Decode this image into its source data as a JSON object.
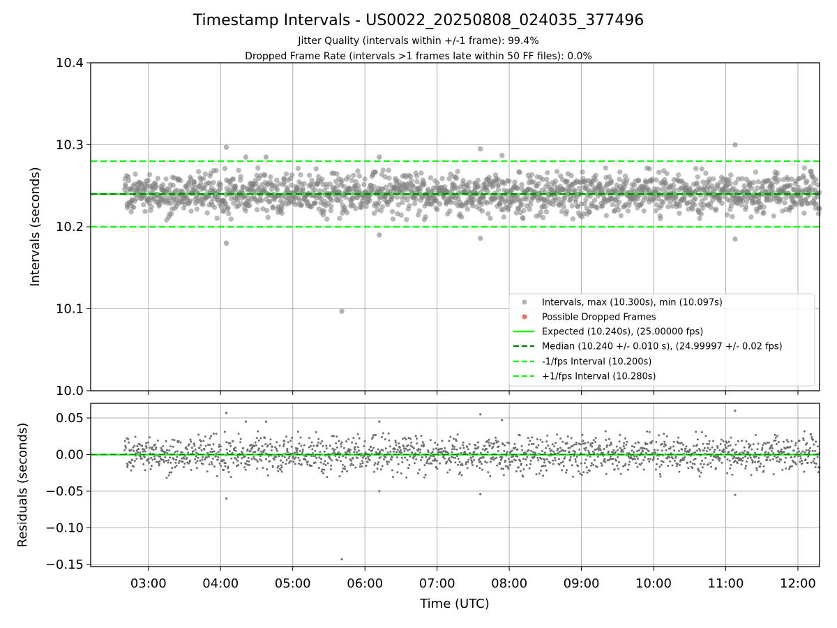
{
  "title": "Timestamp Intervals - US0022_20250808_024035_377496",
  "subtitle_lines": [
    "Jitter Quality (intervals within +/-1 frame): 99.4%",
    "Dropped Frame Rate (intervals >1 frames late within 50 FF files): 0.0%"
  ],
  "colors": {
    "points": "#808080",
    "dropped": "#f0604e",
    "expected": "#22ee22",
    "median": "#0a7d0a",
    "interval_lines": "#22ee22",
    "grid": "#b0b0b0"
  },
  "chart_data": [
    {
      "type": "scatter",
      "panel": "intervals",
      "ylabel": "Intervals (seconds)",
      "ylim": [
        10.0,
        10.4
      ],
      "yticks": [
        10.0,
        10.1,
        10.2,
        10.3,
        10.4
      ],
      "ytick_labels": [
        "10.0",
        "10.1",
        "10.2",
        "10.3",
        "10.4"
      ],
      "xlim_hours": [
        2.2,
        12.3
      ],
      "grid": true,
      "legend_placement": "lower-right",
      "legend": [
        {
          "label": "Intervals, max (10.300s), min (10.097s)",
          "style": "marker-gray"
        },
        {
          "label": "Possible Dropped Frames",
          "style": "marker-red"
        },
        {
          "label": "Expected (10.240s), (25.00000 fps)",
          "style": "line-green"
        },
        {
          "label": "Median (10.240 +/- 0.010 s), (24.99997 +/- 0.02 fps)",
          "style": "dash-darkgreen"
        },
        {
          "label": "-1/fps Interval (10.200s)",
          "style": "dash-green"
        },
        {
          "label": "+1/fps Interval (10.280s)",
          "style": "dash-green"
        }
      ],
      "reference_lines": {
        "expected": 10.24,
        "median": 10.24,
        "lower": 10.2,
        "upper": 10.28
      },
      "distribution": {
        "center": 10.24,
        "std": 0.013,
        "start_hour": 2.67,
        "end_hour": 12.3,
        "interval_seconds": 10.24
      },
      "notable_points": [
        {
          "x": 4.08,
          "y": 10.297
        },
        {
          "x": 4.08,
          "y": 10.18
        },
        {
          "x": 4.35,
          "y": 10.285
        },
        {
          "x": 4.63,
          "y": 10.285
        },
        {
          "x": 5.68,
          "y": 10.097
        },
        {
          "x": 6.2,
          "y": 10.285
        },
        {
          "x": 6.2,
          "y": 10.19
        },
        {
          "x": 7.6,
          "y": 10.295
        },
        {
          "x": 7.6,
          "y": 10.186
        },
        {
          "x": 7.9,
          "y": 10.287
        },
        {
          "x": 11.13,
          "y": 10.3
        },
        {
          "x": 11.13,
          "y": 10.185
        }
      ]
    },
    {
      "type": "scatter",
      "panel": "residuals",
      "ylabel": "Residuals (seconds)",
      "xlabel": "Time (UTC)",
      "ylim": [
        -0.153,
        0.07
      ],
      "yticks": [
        0.05,
        0.0,
        -0.05,
        -0.1,
        -0.15
      ],
      "ytick_labels": [
        "0.05",
        "0.00",
        "−0.05",
        "−0.10",
        "−0.15"
      ],
      "xticks_hours": [
        3,
        4,
        5,
        6,
        7,
        8,
        9,
        10,
        11,
        12
      ],
      "xtick_labels": [
        "03:00",
        "04:00",
        "05:00",
        "06:00",
        "07:00",
        "08:00",
        "09:00",
        "10:00",
        "11:00",
        "12:00"
      ],
      "xlim_hours": [
        2.2,
        12.3
      ],
      "grid": true,
      "zero_line": 0.0,
      "distribution": {
        "center": 0.0,
        "std": 0.013,
        "start_hour": 2.67,
        "end_hour": 12.3,
        "interval_seconds": 10.24
      },
      "notable_points": [
        {
          "x": 4.08,
          "y": 0.057
        },
        {
          "x": 4.08,
          "y": -0.06
        },
        {
          "x": 4.35,
          "y": 0.045
        },
        {
          "x": 4.63,
          "y": 0.045
        },
        {
          "x": 5.68,
          "y": -0.143
        },
        {
          "x": 6.2,
          "y": 0.045
        },
        {
          "x": 6.2,
          "y": -0.05
        },
        {
          "x": 7.6,
          "y": 0.055
        },
        {
          "x": 7.6,
          "y": -0.054
        },
        {
          "x": 7.9,
          "y": 0.047
        },
        {
          "x": 11.13,
          "y": 0.06
        },
        {
          "x": 11.13,
          "y": -0.055
        }
      ]
    }
  ]
}
